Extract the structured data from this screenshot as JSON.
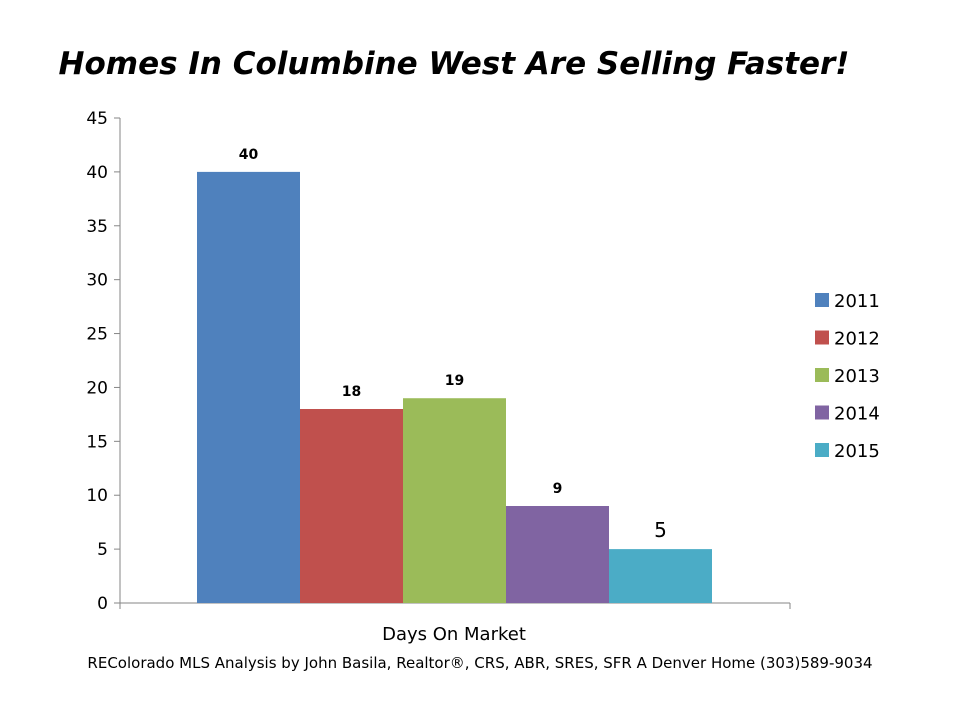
{
  "chart_data": {
    "type": "bar",
    "title": "Homes In Columbine West Are Selling Faster!",
    "xlabel": "Days On Market",
    "ylabel": "",
    "ylim": [
      0,
      45
    ],
    "yticks": [
      "0",
      "5",
      "10",
      "15",
      "20",
      "25",
      "30",
      "35",
      "40",
      "45"
    ],
    "categories": [
      "Days On Market"
    ],
    "grid": false,
    "legend_position": "right",
    "series": [
      {
        "name": "2011",
        "values": [
          40
        ],
        "label": "40",
        "color": "#4F81BD"
      },
      {
        "name": "2012",
        "values": [
          18
        ],
        "label": "18",
        "color": "#C0504D"
      },
      {
        "name": "2013",
        "values": [
          19
        ],
        "label": "19",
        "color": "#9BBB59"
      },
      {
        "name": "2014",
        "values": [
          9
        ],
        "label": "9",
        "color": "#8064A2"
      },
      {
        "name": "2015",
        "values": [
          5
        ],
        "label": "5",
        "color": "#4BACC6"
      }
    ]
  },
  "footer": "REColorado MLS  Analysis by John Basila,  Realtor®, CRS, ABR, SRES, SFR    A Denver Home    (303)589-9034"
}
